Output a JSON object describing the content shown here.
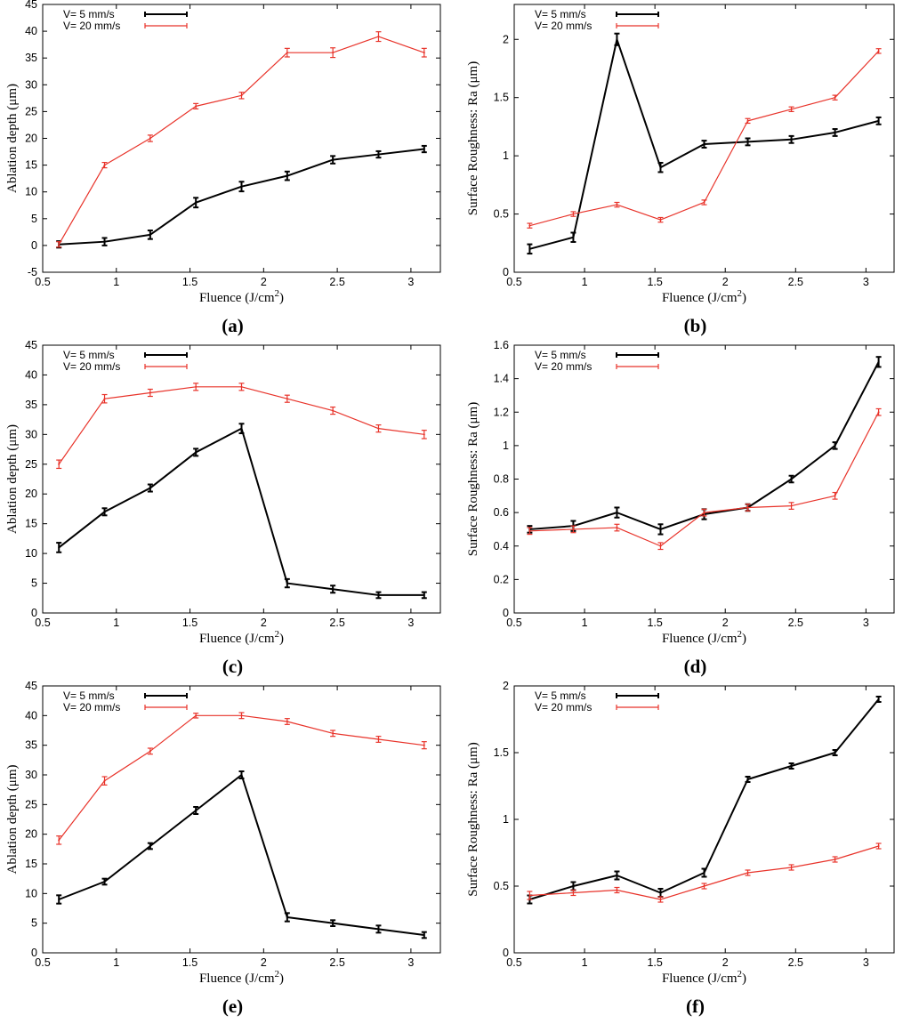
{
  "chart_data": [
    {
      "type": "line",
      "panel_label": "(a)",
      "xlabel": "Fluence (J/cm",
      "xlabel_sup": "2",
      "xlabel_tail": ")",
      "ylabel": "Ablation depth (μm)",
      "xlim": [
        0.5,
        3.2
      ],
      "ylim": [
        -5,
        45
      ],
      "xticks": [
        0.5,
        1,
        1.5,
        2,
        2.5,
        3
      ],
      "yticks": [
        -5,
        0,
        5,
        10,
        15,
        20,
        25,
        30,
        35,
        40,
        45
      ],
      "x": [
        0.61,
        0.92,
        1.23,
        1.54,
        1.85,
        2.16,
        2.47,
        2.78,
        3.09
      ],
      "series": [
        {
          "name": "V= 5 mm/s",
          "color": "#000000",
          "values": [
            0.2,
            0.7,
            2,
            8,
            11,
            13,
            16,
            17,
            18
          ],
          "errors": [
            0.6,
            0.7,
            0.8,
            0.9,
            0.9,
            0.8,
            0.7,
            0.6,
            0.6
          ]
        },
        {
          "name": "V= 20 mm/s",
          "color": "#e8332a",
          "values": [
            0.2,
            15,
            20,
            26,
            28,
            36,
            36,
            39,
            36
          ],
          "errors": [
            0.5,
            0.5,
            0.6,
            0.5,
            0.6,
            0.8,
            0.9,
            0.9,
            0.8
          ]
        }
      ]
    },
    {
      "type": "line",
      "panel_label": "(b)",
      "xlabel": "Fluence (J/cm",
      "xlabel_sup": "2",
      "xlabel_tail": ")",
      "ylabel": "Surface Roughness: Ra (μm)",
      "xlim": [
        0.5,
        3.2
      ],
      "ylim": [
        0,
        2.3
      ],
      "xticks": [
        0.5,
        1,
        1.5,
        2,
        2.5,
        3
      ],
      "yticks": [
        0,
        0.5,
        1,
        1.5,
        2
      ],
      "x": [
        0.61,
        0.92,
        1.23,
        1.54,
        1.85,
        2.16,
        2.47,
        2.78,
        3.09
      ],
      "series": [
        {
          "name": "V= 5 mm/s",
          "color": "#000000",
          "values": [
            0.2,
            0.3,
            2.0,
            0.9,
            1.1,
            1.12,
            1.14,
            1.2,
            1.3
          ],
          "errors": [
            0.04,
            0.04,
            0.05,
            0.04,
            0.03,
            0.03,
            0.03,
            0.03,
            0.03
          ]
        },
        {
          "name": "V= 20 mm/s",
          "color": "#e8332a",
          "values": [
            0.4,
            0.5,
            0.58,
            0.45,
            0.6,
            1.3,
            1.4,
            1.5,
            1.9
          ],
          "errors": [
            0.02,
            0.02,
            0.02,
            0.02,
            0.02,
            0.02,
            0.02,
            0.02,
            0.02
          ]
        }
      ]
    },
    {
      "type": "line",
      "panel_label": "(c)",
      "xlabel": "Fluence (J/cm",
      "xlabel_sup": "2",
      "xlabel_tail": ")",
      "ylabel": "Ablation depth (μm)",
      "xlim": [
        0.5,
        3.2
      ],
      "ylim": [
        0,
        45
      ],
      "xticks": [
        0.5,
        1,
        1.5,
        2,
        2.5,
        3
      ],
      "yticks": [
        0,
        5,
        10,
        15,
        20,
        25,
        30,
        35,
        40,
        45
      ],
      "x": [
        0.61,
        0.92,
        1.23,
        1.54,
        1.85,
        2.16,
        2.47,
        2.78,
        3.09
      ],
      "series": [
        {
          "name": "V= 5 mm/s",
          "color": "#000000",
          "values": [
            11,
            17,
            21,
            27,
            31,
            5,
            4,
            3,
            3
          ],
          "errors": [
            0.8,
            0.6,
            0.6,
            0.6,
            0.8,
            0.7,
            0.6,
            0.5,
            0.5
          ]
        },
        {
          "name": "V= 20 mm/s",
          "color": "#e8332a",
          "values": [
            25,
            36,
            37,
            38,
            38,
            36,
            34,
            31,
            30
          ],
          "errors": [
            0.7,
            0.7,
            0.6,
            0.6,
            0.6,
            0.6,
            0.6,
            0.6,
            0.7
          ]
        }
      ]
    },
    {
      "type": "line",
      "panel_label": "(d)",
      "xlabel": "Fluence (J/cm",
      "xlabel_sup": "2",
      "xlabel_tail": ")",
      "ylabel": "Surface Roughness: Ra (μm)",
      "xlim": [
        0.5,
        3.2
      ],
      "ylim": [
        0,
        1.6
      ],
      "xticks": [
        0.5,
        1,
        1.5,
        2,
        2.5,
        3
      ],
      "yticks": [
        0,
        0.2,
        0.4,
        0.6,
        0.8,
        1,
        1.2,
        1.4,
        1.6
      ],
      "x": [
        0.61,
        0.92,
        1.23,
        1.54,
        1.85,
        2.16,
        2.47,
        2.78,
        3.09
      ],
      "series": [
        {
          "name": "V= 5 mm/s",
          "color": "#000000",
          "values": [
            0.5,
            0.52,
            0.6,
            0.5,
            0.59,
            0.63,
            0.8,
            1.0,
            1.5
          ],
          "errors": [
            0.02,
            0.03,
            0.03,
            0.03,
            0.03,
            0.02,
            0.02,
            0.02,
            0.03
          ]
        },
        {
          "name": "V= 20 mm/s",
          "color": "#e8332a",
          "values": [
            0.49,
            0.5,
            0.51,
            0.4,
            0.6,
            0.63,
            0.64,
            0.7,
            1.2
          ],
          "errors": [
            0.02,
            0.02,
            0.02,
            0.02,
            0.02,
            0.02,
            0.02,
            0.02,
            0.02
          ]
        }
      ]
    },
    {
      "type": "line",
      "panel_label": "(e)",
      "xlabel": "Fluence (J/cm",
      "xlabel_sup": "2",
      "xlabel_tail": ")",
      "ylabel": "Ablation depth (μm)",
      "xlim": [
        0.5,
        3.2
      ],
      "ylim": [
        0,
        45
      ],
      "xticks": [
        0.5,
        1,
        1.5,
        2,
        2.5,
        3
      ],
      "yticks": [
        0,
        5,
        10,
        15,
        20,
        25,
        30,
        35,
        40,
        45
      ],
      "x": [
        0.61,
        0.92,
        1.23,
        1.54,
        1.85,
        2.16,
        2.47,
        2.78,
        3.09
      ],
      "series": [
        {
          "name": "V= 5 mm/s",
          "color": "#000000",
          "values": [
            9,
            12,
            18,
            24,
            30,
            6,
            5,
            4,
            3
          ],
          "errors": [
            0.7,
            0.5,
            0.5,
            0.6,
            0.6,
            0.7,
            0.5,
            0.6,
            0.5
          ]
        },
        {
          "name": "V= 20 mm/s",
          "color": "#e8332a",
          "values": [
            19,
            29,
            34,
            40,
            40,
            39,
            37,
            36,
            35
          ],
          "errors": [
            0.7,
            0.7,
            0.5,
            0.4,
            0.5,
            0.5,
            0.5,
            0.5,
            0.6
          ]
        }
      ]
    },
    {
      "type": "line",
      "panel_label": "(f)",
      "xlabel": "Fluence (J/cm",
      "xlabel_sup": "2",
      "xlabel_tail": ")",
      "ylabel": "Surface Roughness: Ra (μm)",
      "xlim": [
        0.5,
        3.2
      ],
      "ylim": [
        0,
        2
      ],
      "xticks": [
        0.5,
        1,
        1.5,
        2,
        2.5,
        3
      ],
      "yticks": [
        0,
        0.5,
        1,
        1.5,
        2
      ],
      "x": [
        0.61,
        0.92,
        1.23,
        1.54,
        1.85,
        2.16,
        2.47,
        2.78,
        3.09
      ],
      "series": [
        {
          "name": "V= 5 mm/s",
          "color": "#000000",
          "values": [
            0.4,
            0.5,
            0.58,
            0.45,
            0.6,
            1.3,
            1.4,
            1.5,
            1.9
          ],
          "errors": [
            0.03,
            0.03,
            0.03,
            0.03,
            0.03,
            0.02,
            0.02,
            0.02,
            0.02
          ]
        },
        {
          "name": "V= 20 mm/s",
          "color": "#e8332a",
          "values": [
            0.43,
            0.45,
            0.47,
            0.4,
            0.5,
            0.6,
            0.64,
            0.7,
            0.8
          ],
          "errors": [
            0.03,
            0.02,
            0.02,
            0.02,
            0.02,
            0.02,
            0.02,
            0.02,
            0.02
          ]
        }
      ]
    }
  ]
}
